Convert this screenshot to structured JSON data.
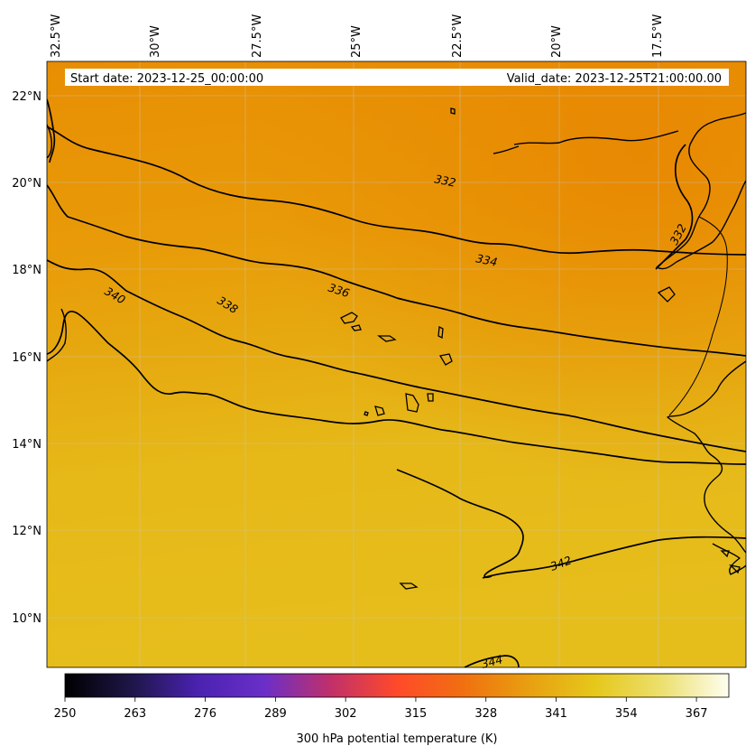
{
  "map": {
    "start_date_text": "Start date: 2023-12-25_00:00:00",
    "valid_date_text": "Valid_date: 2023-12-25T21:00:00.00",
    "lon_ticks": [
      "32.5°W",
      "30°W",
      "27.5°W",
      "25°W",
      "22.5°W",
      "20°W",
      "17.5°W"
    ],
    "lat_ticks": [
      "22°N",
      "20°N",
      "18°N",
      "16°N",
      "14°N",
      "12°N",
      "10°N"
    ],
    "contour_labels": [
      "332",
      "332",
      "334",
      "336",
      "338",
      "340",
      "342",
      "344"
    ],
    "field_colors": {
      "north": "#e88e04",
      "mid": "#e6a80e",
      "south": "#e6be1c"
    }
  },
  "colorbar": {
    "ticks": [
      "250",
      "263",
      "276",
      "289",
      "302",
      "315",
      "328",
      "341",
      "354",
      "367"
    ],
    "label": "300 hPa potential temperature (K)",
    "range": [
      250,
      373
    ],
    "stops": [
      "#000000",
      "#1e1648",
      "#4a22b0",
      "#6a2fc8",
      "#c0306a",
      "#ff4a2a",
      "#f07010",
      "#e8a010",
      "#e6c81c",
      "#ece070",
      "#fefef0"
    ]
  }
}
